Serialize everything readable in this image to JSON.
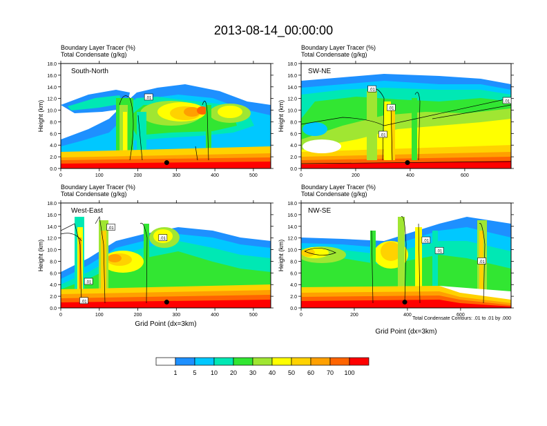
{
  "title": "2013-08-14_00:00:00",
  "chart_data": [
    {
      "type": "heatmap",
      "panel": "South-North",
      "title_lines": [
        "Boundary Layer Tracer   (%)",
        "Total Condensate   (g/kg)"
      ],
      "ylabel": "Height (km)",
      "xlabel": "",
      "ylim": [
        0,
        18
      ],
      "xlim": [
        0,
        545
      ],
      "yticks": [
        "0.0",
        "2.0",
        "4.0",
        "6.0",
        "8.0",
        "10.0",
        "12.0",
        "14.0",
        "16.0",
        "18.0"
      ],
      "xtick_values": [
        0,
        100,
        200,
        300,
        400,
        500
      ],
      "xtick_labels": [
        "0",
        "100",
        "200",
        "300",
        "400",
        "500"
      ],
      "marker_x": 275,
      "contour_labels": [
        {
          "text": "0.01",
          "x": 228,
          "y": 12.2
        }
      ]
    },
    {
      "type": "heatmap",
      "panel": "SW-NE",
      "title_lines": [
        "Boundary Layer Tracer   (%)",
        "Total Condensate   (g/kg)"
      ],
      "ylabel": "Height (km)",
      "xlabel": "",
      "ylim": [
        0,
        18
      ],
      "xlim": [
        0,
        770
      ],
      "yticks": [
        "0.0",
        "2.0",
        "4.0",
        "6.0",
        "8.0",
        "10.0",
        "12.0",
        "14.0",
        "16.0",
        "18.0"
      ],
      "xtick_values": [
        0,
        200,
        400,
        600
      ],
      "xtick_labels": [
        "0",
        "200",
        "400",
        "600"
      ],
      "marker_x": 390,
      "contour_labels": [
        {
          "text": "0.01",
          "x": 260,
          "y": 13.6
        },
        {
          "text": "0.01",
          "x": 330,
          "y": 10.4
        },
        {
          "text": "0.01",
          "x": 300,
          "y": 5.8
        },
        {
          "text": "0.01",
          "x": 755,
          "y": 11.6
        }
      ]
    },
    {
      "type": "heatmap",
      "panel": "West-East",
      "title_lines": [
        "Boundary Layer Tracer   (%)",
        "Total Condensate   (g/kg)"
      ],
      "ylabel": "Height (km)",
      "xlabel": "Grid Point (dx=3km)",
      "ylim": [
        0,
        18
      ],
      "xlim": [
        0,
        545
      ],
      "yticks": [
        "0.0",
        "2.0",
        "4.0",
        "6.0",
        "8.0",
        "10.0",
        "12.0",
        "14.0",
        "16.0",
        "18.0"
      ],
      "xtick_values": [
        0,
        100,
        200,
        300,
        400,
        500
      ],
      "xtick_labels": [
        "0",
        "100",
        "200",
        "300",
        "400",
        "500"
      ],
      "marker_x": 275,
      "contour_labels": [
        {
          "text": "0.01",
          "x": 130,
          "y": 13.8
        },
        {
          "text": "0.01",
          "x": 265,
          "y": 12.0
        },
        {
          "text": "0.01",
          "x": 72,
          "y": 4.5
        },
        {
          "text": "0.01",
          "x": 60,
          "y": 1.2
        }
      ]
    },
    {
      "type": "heatmap",
      "panel": "NW-SE",
      "title_lines": [
        "Boundary Layer Tracer   (%)",
        "Total Condensate   (g/kg)"
      ],
      "ylabel": "Height (km)",
      "xlabel": "Grid Point (dx=3km)",
      "ylim": [
        0,
        18
      ],
      "xlim": [
        0,
        790
      ],
      "yticks": [
        "0.0",
        "2.0",
        "4.0",
        "6.0",
        "8.0",
        "10.0",
        "12.0",
        "14.0",
        "16.0",
        "18.0"
      ],
      "xtick_values": [
        0,
        200,
        400,
        600
      ],
      "xtick_labels": [
        "0",
        "200",
        "400",
        "600"
      ],
      "marker_x": 390,
      "contour_labels": [
        {
          "text": "0.01",
          "x": 470,
          "y": 11.6
        },
        {
          "text": "0.01",
          "x": 520,
          "y": 9.8
        },
        {
          "text": "0.01",
          "x": 680,
          "y": 8.0
        }
      ],
      "contour_note": "Total Condensate Contours: .01 to .01 by .000"
    }
  ],
  "colorbar": {
    "levels": [
      "1",
      "5",
      "10",
      "20",
      "30",
      "40",
      "50",
      "60",
      "70",
      "100"
    ],
    "colors": [
      "#ffffff",
      "#1e90ff",
      "#00c8ff",
      "#00e8b4",
      "#32e632",
      "#00c800",
      "#a0e632",
      "#ffff00",
      "#ffd200",
      "#ffa000",
      "#ff6400",
      "#ff0000"
    ]
  }
}
